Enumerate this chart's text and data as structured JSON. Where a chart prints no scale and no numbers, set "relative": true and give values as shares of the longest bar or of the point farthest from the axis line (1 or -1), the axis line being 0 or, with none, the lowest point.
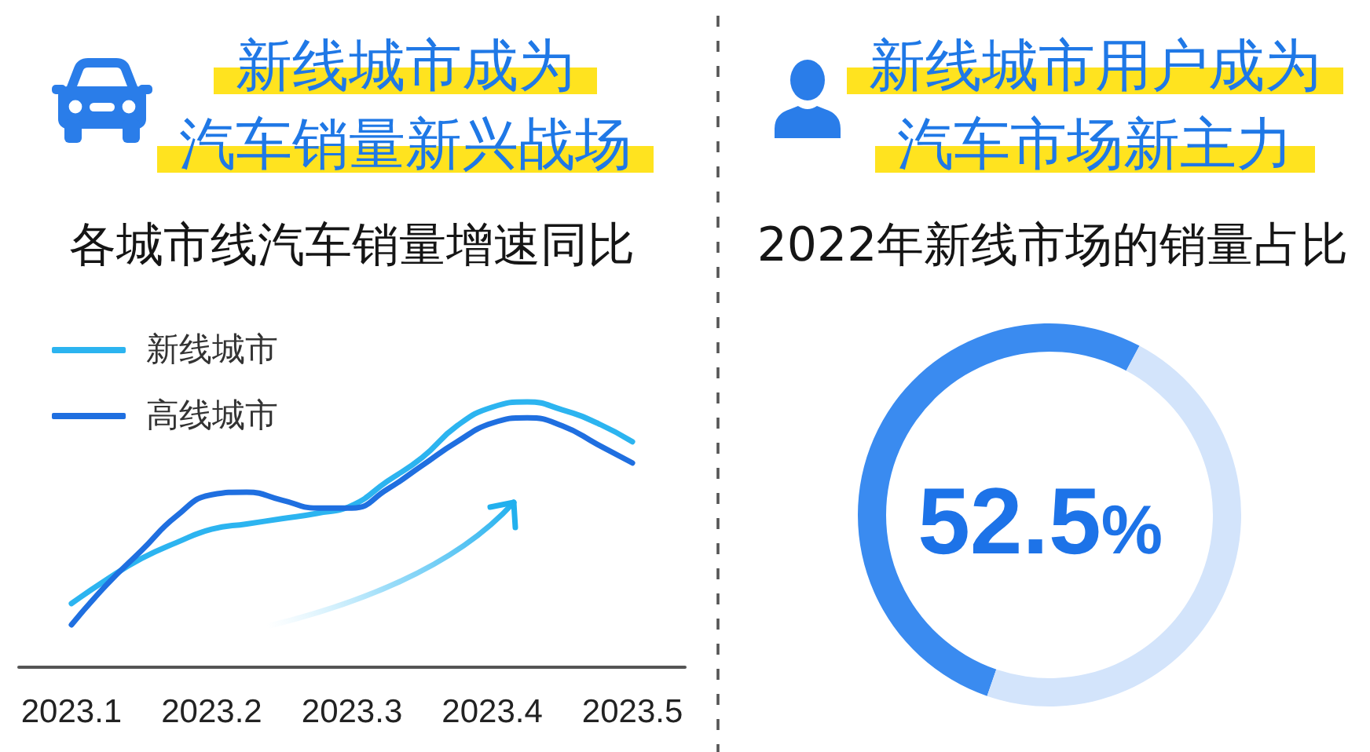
{
  "chart_data": [
    {
      "type": "line",
      "title": "新线城市成为汽车销量新兴战场",
      "subtitle": "各城市线汽车销量增速同比",
      "relative": true,
      "categories": [
        null,
        "2023.1",
        null,
        null,
        null,
        "2023.2",
        null,
        null,
        null,
        "2023.3",
        null,
        null,
        null,
        "2023.4",
        null,
        null,
        null,
        "2023.5",
        null
      ],
      "series": [
        {
          "name": "新线城市",
          "color": "#2cb4f0",
          "values": [
            null,
            0.24,
            0.33,
            0.41,
            0.47,
            0.52,
            0.54,
            0.56,
            0.58,
            0.61,
            0.7,
            0.79,
            0.91,
            0.98,
            1,
            0.97,
            0.92,
            0.85,
            null
          ]
        },
        {
          "name": "高线城市",
          "color": "#1f6fe0",
          "values": [
            null,
            0.16,
            0.31,
            0.44,
            0.57,
            0.65,
            0.66,
            0.63,
            0.6,
            0.6,
            0.67,
            0.76,
            0.85,
            0.92,
            0.94,
            0.91,
            0.84,
            0.77,
            null
          ]
        }
      ],
      "legend": "top left",
      "marker": "none",
      "line_style": "solid"
    },
    {
      "type": "donut",
      "title": "新线城市用户成为汽车市场新主力",
      "subtitle": "2022年新线市场的销量占比",
      "categories": [
        null,
        null
      ],
      "values": [
        52.5,
        47.5
      ],
      "colors": [
        "#3a8bf0",
        "#d3e4fb"
      ],
      "value_labels": [
        "52.5%",
        null
      ]
    }
  ]
}
